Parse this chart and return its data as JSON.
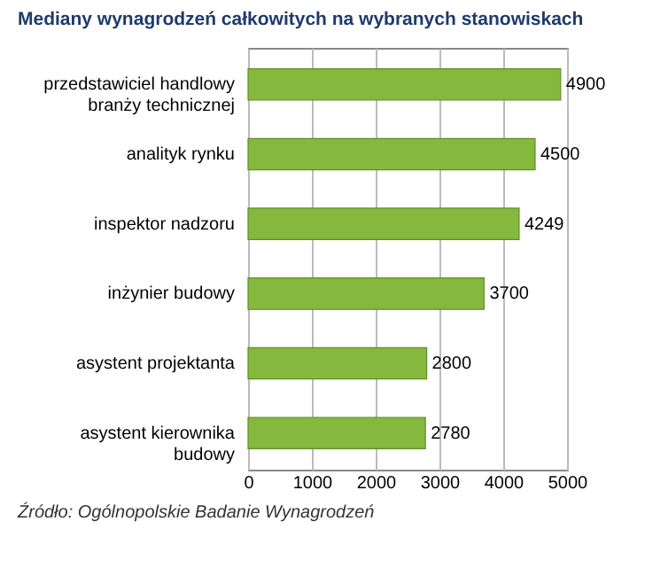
{
  "chart_data": {
    "type": "bar",
    "orientation": "horizontal",
    "title": "Mediany wynagrodzeń całkowitych na wybranych stanowiskach",
    "categories": [
      "przedstawiciel handlowy branży technicznej",
      "analityk rynku",
      "inspektor nadzoru",
      "inżynier budowy",
      "asystent projektanta",
      "asystent kierownika budowy"
    ],
    "values": [
      4900,
      4500,
      4249,
      3700,
      2800,
      2780
    ],
    "color": "#86b83e",
    "xlim": [
      0,
      5000
    ],
    "xticks": [
      0,
      1000,
      2000,
      3000,
      4000,
      5000
    ],
    "grid": "x",
    "data_labels": true,
    "annotations": [
      "Źródło: Ogólnopolskie Badanie Wynagrodzeń"
    ]
  }
}
